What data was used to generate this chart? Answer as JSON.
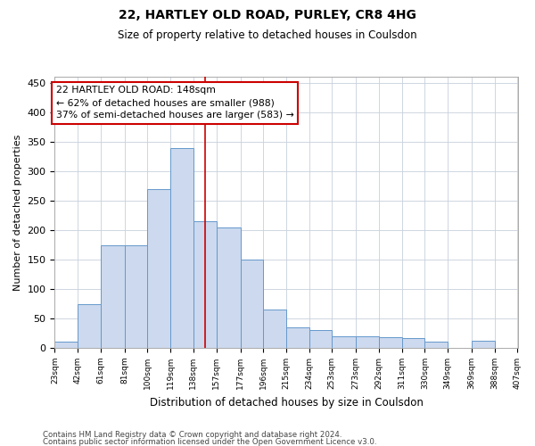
{
  "title1": "22, HARTLEY OLD ROAD, PURLEY, CR8 4HG",
  "title2": "Size of property relative to detached houses in Coulsdon",
  "xlabel": "Distribution of detached houses by size in Coulsdon",
  "ylabel": "Number of detached properties",
  "bin_edges": [
    23,
    42,
    61,
    81,
    100,
    119,
    138,
    157,
    177,
    196,
    215,
    234,
    253,
    273,
    292,
    311,
    330,
    349,
    369,
    388,
    407
  ],
  "bar_heights": [
    10,
    75,
    175,
    175,
    270,
    340,
    215,
    205,
    150,
    65,
    35,
    30,
    20,
    20,
    18,
    17,
    10,
    0,
    12,
    0
  ],
  "bar_color": "#ccd9ee",
  "bar_edge_color": "#6699cc",
  "property_size": 148,
  "vline_color": "#cc0000",
  "annotation_text": "22 HARTLEY OLD ROAD: 148sqm\n← 62% of detached houses are smaller (988)\n37% of semi-detached houses are larger (583) →",
  "annotation_box_color": "#cc0000",
  "footer1": "Contains HM Land Registry data © Crown copyright and database right 2024.",
  "footer2": "Contains public sector information licensed under the Open Government Licence v3.0.",
  "ylim": [
    0,
    460
  ],
  "yticks": [
    0,
    50,
    100,
    150,
    200,
    250,
    300,
    350,
    400,
    450
  ],
  "bg_color": "#ffffff",
  "grid_color": "#c8d0dc"
}
